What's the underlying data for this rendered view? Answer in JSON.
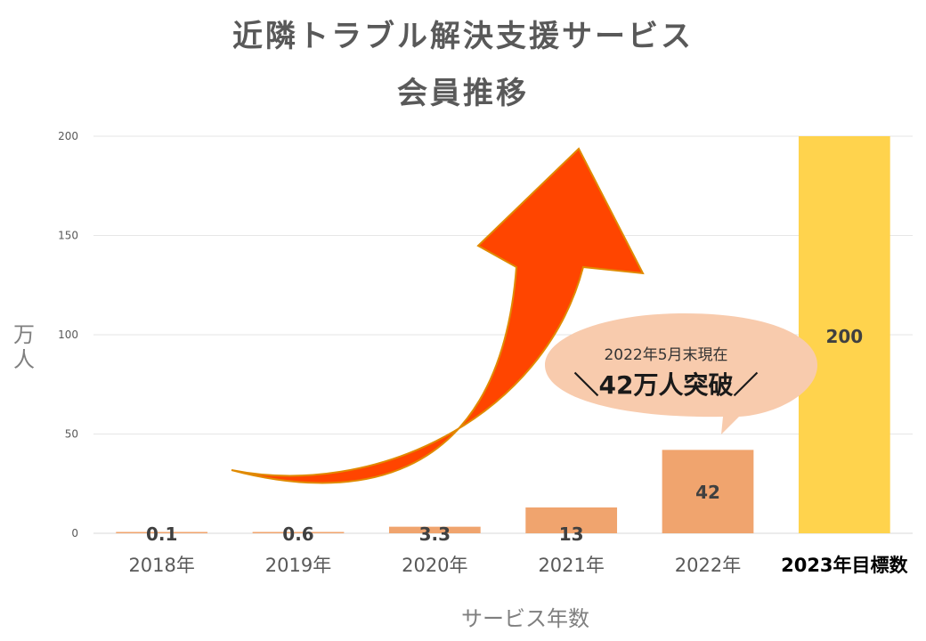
{
  "title_line1": "近隣トラブル解決支援サービス",
  "title_line2": "会員推移",
  "colors": {
    "bar": "#F0A46E",
    "target_bar": "#FFD34D",
    "arrow": "#FF4500",
    "callout": "#F8CBAD",
    "grid": "#E6E6E6"
  },
  "callout": {
    "line1": "2022年5月末現在",
    "line2": "＼42万人突破／"
  },
  "chart_data": {
    "type": "bar",
    "categories": [
      "2018年",
      "2019年",
      "2020年",
      "2021年",
      "2022年",
      "2023年目標数"
    ],
    "values": [
      0.1,
      0.6,
      3.3,
      13,
      42,
      200
    ],
    "data_labels": [
      "0.1",
      "0.6",
      "3.3",
      "13",
      "42",
      "200"
    ],
    "highlight_index": 5,
    "ylabel": "万人",
    "xlabel": "サービス年数",
    "ylim": [
      0,
      200
    ],
    "yticks": [
      0,
      50,
      100,
      150,
      200
    ],
    "grid": true
  }
}
